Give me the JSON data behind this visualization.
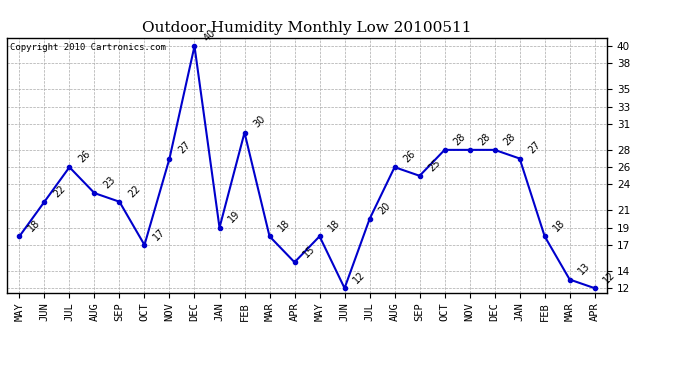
{
  "title": "Outdoor Humidity Monthly Low 20100511",
  "copyright": "Copyright 2010 Cartronics.com",
  "x_labels": [
    "MAY",
    "JUN",
    "JUL",
    "AUG",
    "SEP",
    "OCT",
    "NOV",
    "DEC",
    "JAN",
    "FEB",
    "MAR",
    "APR",
    "MAY",
    "JUN",
    "JUL",
    "AUG",
    "SEP",
    "OCT",
    "NOV",
    "DEC",
    "JAN",
    "FEB",
    "MAR",
    "APR"
  ],
  "y_values": [
    18,
    22,
    26,
    23,
    22,
    17,
    27,
    40,
    19,
    30,
    18,
    15,
    18,
    12,
    20,
    26,
    25,
    28,
    28,
    28,
    27,
    18,
    13,
    12
  ],
  "y_ticks": [
    12,
    14,
    17,
    19,
    21,
    24,
    26,
    28,
    31,
    33,
    35,
    38,
    40
  ],
  "ylim_min": 11.5,
  "ylim_max": 41,
  "line_color": "#0000CC",
  "marker_color": "#0000CC",
  "bg_color": "#FFFFFF",
  "plot_bg_color": "#FFFFFF",
  "grid_color": "#AAAAAA",
  "title_fontsize": 11,
  "label_fontsize": 7,
  "tick_fontsize": 7.5,
  "copyright_fontsize": 6.5
}
